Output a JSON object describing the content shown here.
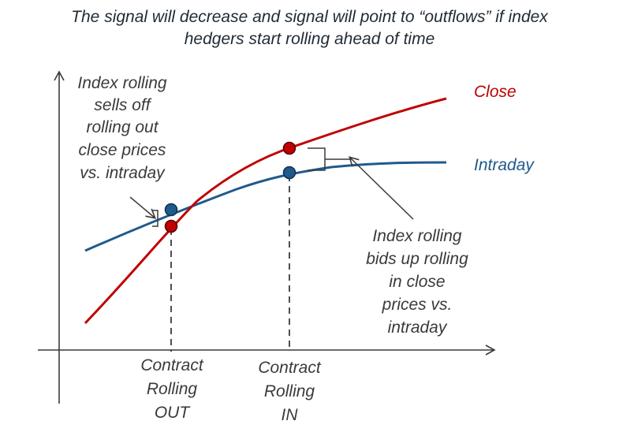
{
  "title": {
    "line1": "The signal will decrease and signal will point to “outflows” if index",
    "line2": "hedgers start rolling ahead of time"
  },
  "series": {
    "close": {
      "label": "Close",
      "color": "#c00000"
    },
    "intraday": {
      "label": "Intraday",
      "color": "#1f5a8c"
    }
  },
  "annotations": {
    "rolling_out": [
      "Index rolling",
      "sells off",
      "rolling out",
      "close prices",
      "vs. intraday"
    ],
    "rolling_in": [
      "Index rolling",
      "bids up rolling",
      "in close",
      "prices vs.",
      "intraday"
    ]
  },
  "axis_markers": {
    "out": [
      "Contract",
      "Rolling",
      "OUT"
    ],
    "in": [
      "Contract",
      "Rolling",
      "IN"
    ]
  },
  "colors": {
    "axis": "#3a3a3a",
    "close": "#c00000",
    "intraday": "#1f5a8c",
    "point_stroke": "#5a0000"
  }
}
